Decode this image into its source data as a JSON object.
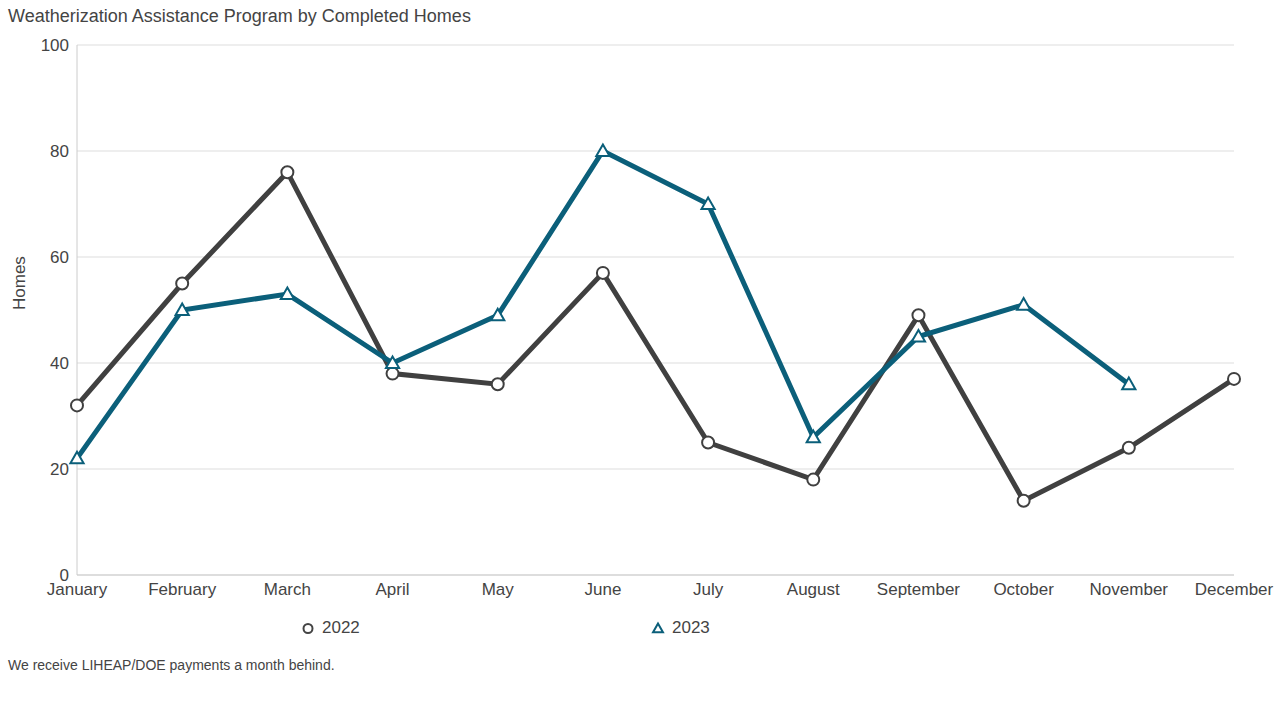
{
  "chart_data": {
    "type": "line",
    "title": "Weatherization Assistance Program by Completed Homes",
    "ylabel": "Homes",
    "categories": [
      "January",
      "February",
      "March",
      "April",
      "May",
      "June",
      "July",
      "August",
      "September",
      "October",
      "November",
      "December"
    ],
    "series": [
      {
        "name": "2022",
        "color": "#404040",
        "marker": "circle",
        "values": [
          32,
          55,
          76,
          38,
          36,
          57,
          25,
          18,
          49,
          14,
          24,
          37
        ]
      },
      {
        "name": "2023",
        "color": "#0b5f7a",
        "marker": "triangle",
        "values": [
          22,
          50,
          53,
          40,
          49,
          80,
          70,
          26,
          45,
          51,
          36,
          null
        ]
      }
    ],
    "ylim": [
      0,
      100
    ],
    "yticks": [
      0,
      20,
      40,
      60,
      80,
      100
    ],
    "grid": true,
    "legend": "bottom",
    "annotations": [
      "We receive LIHEAP/DOE payments a month behind."
    ]
  }
}
